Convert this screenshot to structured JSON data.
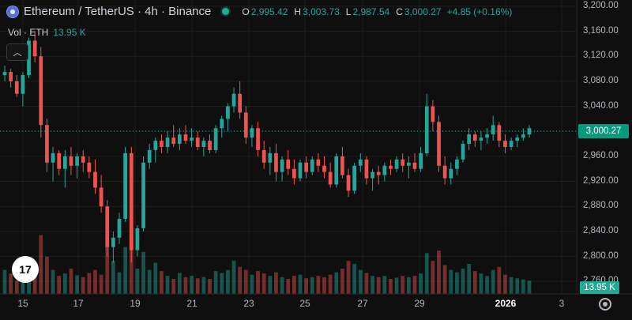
{
  "header": {
    "symbol_title": "Ethereum / TetherUS · 4h · Binance",
    "ohlc": [
      {
        "key": "O",
        "value": "2,995.42"
      },
      {
        "key": "H",
        "value": "3,003.73"
      },
      {
        "key": "L",
        "value": "2,987.54"
      },
      {
        "key": "C",
        "value": "3,000.27"
      }
    ],
    "change": "+4.85 (+0.16%)",
    "volume_label": "Vol · ETH",
    "volume_value": "13.95 K"
  },
  "price_axis": {
    "labels": [
      "3,200.00",
      "3,160.00",
      "3,120.00",
      "3,080.00",
      "3,040.00",
      "3,000.00",
      "2,960.00",
      "2,920.00",
      "2,880.00",
      "2,840.00",
      "2,800.00",
      "2,760.00"
    ],
    "current_price": "3,000.27",
    "current_volume": "13.95 K"
  },
  "time_axis": {
    "labels": [
      "15",
      "17",
      "19",
      "21",
      "23",
      "25",
      "27",
      "29",
      "2026",
      "3"
    ]
  },
  "logo_text": "17",
  "colors": {
    "up": "#26a69a",
    "down": "#ef5350",
    "background": "#0f0f0f"
  },
  "chart_data": {
    "type": "candlestick",
    "ylim": [
      2740,
      3210
    ],
    "candles": [
      [
        3090,
        3105,
        3080,
        3095
      ],
      [
        3095,
        3100,
        3070,
        3080
      ],
      [
        3080,
        3090,
        3055,
        3060
      ],
      [
        3060,
        3095,
        3040,
        3090
      ],
      [
        3090,
        3150,
        3085,
        3145
      ],
      [
        3145,
        3160,
        3110,
        3120
      ],
      [
        3120,
        3135,
        2990,
        3010
      ],
      [
        3010,
        3020,
        2935,
        2950
      ],
      [
        2950,
        2975,
        2920,
        2965
      ],
      [
        2965,
        2970,
        2930,
        2940
      ],
      [
        2940,
        2970,
        2910,
        2960
      ],
      [
        2960,
        2975,
        2930,
        2945
      ],
      [
        2945,
        2965,
        2925,
        2960
      ],
      [
        2960,
        2970,
        2935,
        2950
      ],
      [
        2950,
        2960,
        2925,
        2935
      ],
      [
        2935,
        2955,
        2900,
        2910
      ],
      [
        2910,
        2930,
        2870,
        2880
      ],
      [
        2880,
        2890,
        2800,
        2815
      ],
      [
        2815,
        2840,
        2790,
        2830
      ],
      [
        2830,
        2870,
        2820,
        2860
      ],
      [
        2860,
        2975,
        2855,
        2965
      ],
      [
        2965,
        2975,
        2790,
        2810
      ],
      [
        2810,
        2850,
        2800,
        2845
      ],
      [
        2845,
        2960,
        2840,
        2950
      ],
      [
        2950,
        2980,
        2940,
        2970
      ],
      [
        2970,
        2990,
        2950,
        2985
      ],
      [
        2985,
        2995,
        2965,
        2975
      ],
      [
        2975,
        3000,
        2965,
        2990
      ],
      [
        2990,
        3010,
        2975,
        2980
      ],
      [
        2980,
        3005,
        2970,
        2995
      ],
      [
        2995,
        3010,
        2980,
        2985
      ],
      [
        2985,
        3005,
        2975,
        2990
      ],
      [
        2990,
        3000,
        2970,
        2975
      ],
      [
        2975,
        2990,
        2960,
        2985
      ],
      [
        2985,
        2995,
        2965,
        2970
      ],
      [
        2970,
        3010,
        2965,
        3005
      ],
      [
        3005,
        3025,
        2990,
        3020
      ],
      [
        3020,
        3045,
        3000,
        3040
      ],
      [
        3040,
        3070,
        3030,
        3060
      ],
      [
        3060,
        3080,
        3020,
        3030
      ],
      [
        3030,
        3040,
        2980,
        2990
      ],
      [
        2990,
        3010,
        2975,
        3005
      ],
      [
        3005,
        3015,
        2960,
        2970
      ],
      [
        2970,
        2985,
        2940,
        2950
      ],
      [
        2950,
        2975,
        2930,
        2965
      ],
      [
        2965,
        2980,
        2920,
        2935
      ],
      [
        2935,
        2960,
        2920,
        2955
      ],
      [
        2955,
        2970,
        2930,
        2940
      ],
      [
        2940,
        2955,
        2915,
        2925
      ],
      [
        2925,
        2955,
        2920,
        2950
      ],
      [
        2950,
        2960,
        2925,
        2935
      ],
      [
        2935,
        2960,
        2930,
        2955
      ],
      [
        2955,
        2965,
        2935,
        2945
      ],
      [
        2945,
        2960,
        2925,
        2935
      ],
      [
        2935,
        2950,
        2910,
        2915
      ],
      [
        2915,
        2965,
        2910,
        2960
      ],
      [
        2960,
        2975,
        2925,
        2930
      ],
      [
        2930,
        2940,
        2895,
        2905
      ],
      [
        2905,
        2950,
        2900,
        2945
      ],
      [
        2945,
        2965,
        2935,
        2955
      ],
      [
        2955,
        2960,
        2915,
        2925
      ],
      [
        2925,
        2940,
        2905,
        2935
      ],
      [
        2935,
        2945,
        2915,
        2930
      ],
      [
        2930,
        2950,
        2920,
        2945
      ],
      [
        2945,
        2955,
        2930,
        2940
      ],
      [
        2940,
        2960,
        2935,
        2955
      ],
      [
        2955,
        2965,
        2935,
        2945
      ],
      [
        2945,
        2960,
        2925,
        2950
      ],
      [
        2950,
        2965,
        2935,
        2940
      ],
      [
        2940,
        2975,
        2935,
        2965
      ],
      [
        2965,
        3060,
        2960,
        3040
      ],
      [
        3040,
        3050,
        3000,
        3015
      ],
      [
        3015,
        3025,
        2935,
        2945
      ],
      [
        2945,
        2960,
        2915,
        2925
      ],
      [
        2925,
        2950,
        2915,
        2940
      ],
      [
        2940,
        2960,
        2930,
        2955
      ],
      [
        2955,
        2985,
        2950,
        2980
      ],
      [
        2980,
        3005,
        2970,
        2995
      ],
      [
        2995,
        3000,
        2975,
        2985
      ],
      [
        2985,
        3000,
        2970,
        2990
      ],
      [
        2990,
        3005,
        2980,
        2995
      ],
      [
        2995,
        3025,
        2985,
        3010
      ],
      [
        3010,
        3015,
        2975,
        2985
      ],
      [
        2985,
        2995,
        2965,
        2975
      ],
      [
        2975,
        2990,
        2970,
        2985
      ],
      [
        2985,
        2995,
        2975,
        2990
      ],
      [
        2990,
        3005,
        2985,
        2995
      ],
      [
        2995,
        3010,
        2990,
        3005
      ]
    ],
    "volumes": [
      0.4,
      0.34,
      0.22,
      0.42,
      0.3,
      0.38,
      0.98,
      0.62,
      0.4,
      0.3,
      0.34,
      0.42,
      0.31,
      0.28,
      0.35,
      0.4,
      0.32,
      0.9,
      0.55,
      0.36,
      0.78,
      1.0,
      0.42,
      0.7,
      0.4,
      0.52,
      0.38,
      0.3,
      0.25,
      0.35,
      0.28,
      0.3,
      0.26,
      0.28,
      0.25,
      0.38,
      0.35,
      0.4,
      0.55,
      0.45,
      0.4,
      0.32,
      0.38,
      0.34,
      0.3,
      0.36,
      0.28,
      0.25,
      0.3,
      0.32,
      0.26,
      0.28,
      0.3,
      0.28,
      0.32,
      0.36,
      0.42,
      0.55,
      0.5,
      0.4,
      0.35,
      0.3,
      0.28,
      0.3,
      0.25,
      0.27,
      0.3,
      0.28,
      0.3,
      0.34,
      0.68,
      0.55,
      0.72,
      0.48,
      0.4,
      0.36,
      0.42,
      0.5,
      0.38,
      0.34,
      0.3,
      0.4,
      0.45,
      0.32,
      0.28,
      0.26,
      0.24,
      0.22
    ]
  }
}
